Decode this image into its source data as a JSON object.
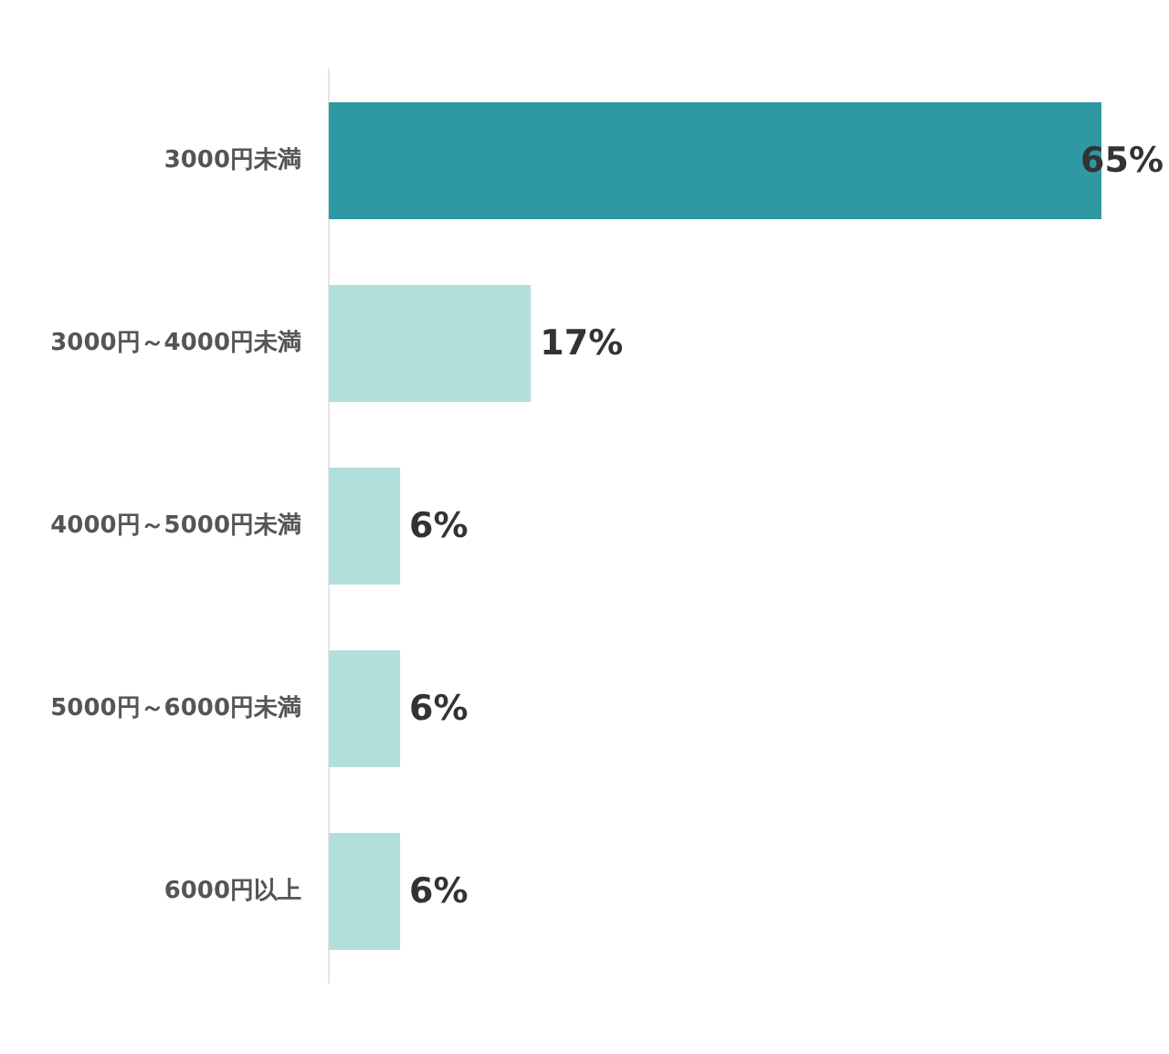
{
  "chart_data": {
    "type": "bar",
    "orientation": "horizontal",
    "categories": [
      "3000円未満",
      "3000円～4000円未満",
      "4000円～5000円未満",
      "5000円～6000円未満",
      "6000円以上"
    ],
    "values": [
      65,
      17,
      6,
      6,
      6
    ],
    "colors": [
      "#2e99a2",
      "#b2dfdb",
      "#b2dfdb",
      "#b2dfdb",
      "#b2dfdb"
    ],
    "xlim": [
      0,
      65
    ],
    "value_labels": [
      "65%",
      "17%",
      "6%",
      "6%",
      "6%"
    ],
    "tick_labels": "y"
  }
}
